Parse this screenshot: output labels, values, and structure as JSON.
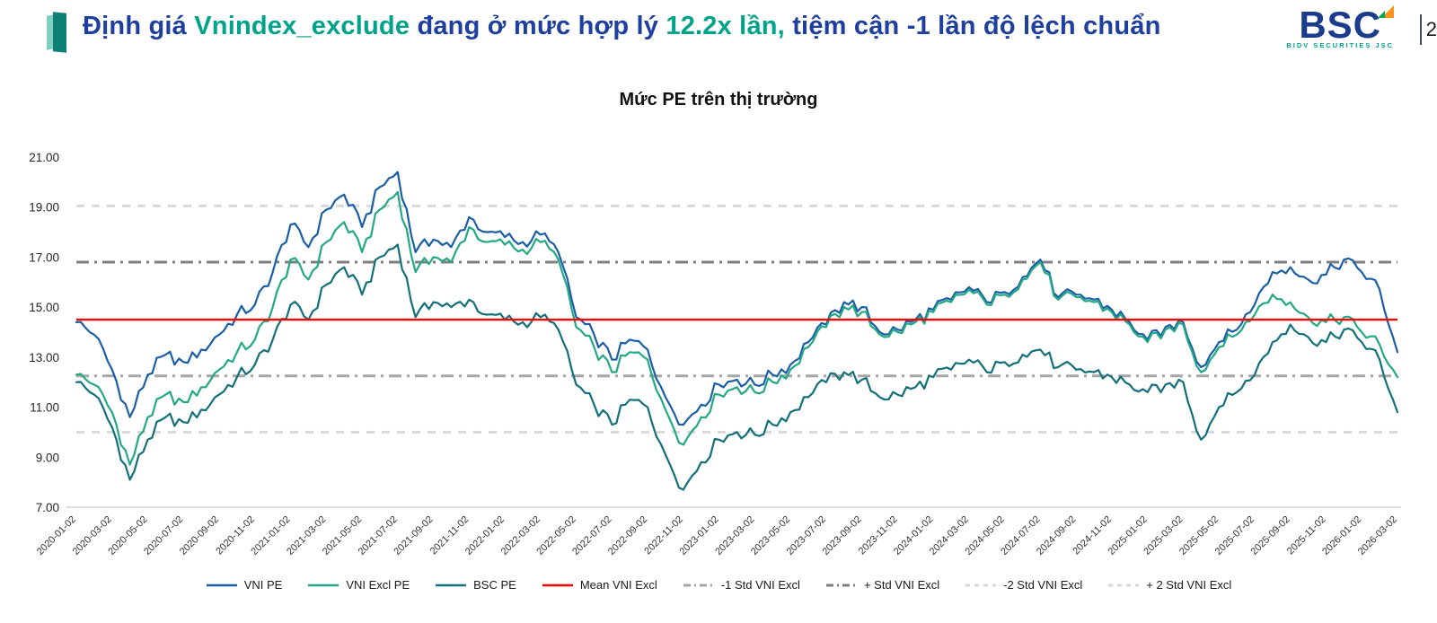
{
  "header": {
    "title_segments": [
      {
        "text": "Định giá ",
        "color": "#1e3f9e"
      },
      {
        "text": "Vnindex_exclude ",
        "color": "#00a38a"
      },
      {
        "text": "đang ở mức hợp lý ",
        "color": "#1e3f9e"
      },
      {
        "text": "12.2x lần, ",
        "color": "#00a38a"
      },
      {
        "text": "tiệm cận -1 lần độ lệch chuẩn",
        "color": "#1e3f9e"
      }
    ],
    "logo": {
      "text": "BSC",
      "subtext": "BIDV SECURITIES JSC"
    },
    "page_number": "2"
  },
  "chart_data": {
    "type": "line",
    "title": "Mức PE trên thị trường",
    "ylim": [
      7,
      21
    ],
    "yticks": [
      7,
      9,
      11,
      13,
      15,
      17,
      19,
      21
    ],
    "x_months": [
      "2020-01",
      "2020-02",
      "2020-03",
      "2020-04",
      "2020-05",
      "2020-06",
      "2020-07",
      "2020-08",
      "2020-09",
      "2020-10",
      "2020-11",
      "2020-12",
      "2021-01",
      "2021-02",
      "2021-03",
      "2021-04",
      "2021-05",
      "2021-06",
      "2021-07",
      "2021-08",
      "2021-09",
      "2021-10",
      "2021-11",
      "2021-12",
      "2022-01",
      "2022-02",
      "2022-03",
      "2022-04",
      "2022-05",
      "2022-06",
      "2022-07",
      "2022-08",
      "2022-09",
      "2022-10",
      "2022-11",
      "2022-12",
      "2023-01",
      "2023-02",
      "2023-03",
      "2023-04",
      "2023-05",
      "2023-06",
      "2023-07",
      "2023-08",
      "2023-09",
      "2023-10",
      "2023-11",
      "2023-12",
      "2024-01",
      "2024-02",
      "2024-03",
      "2024-04",
      "2024-05",
      "2024-06",
      "2024-07",
      "2024-08",
      "2024-09",
      "2024-10",
      "2024-11",
      "2024-12",
      "2025-01",
      "2025-02",
      "2025-03",
      "2025-04",
      "2025-05",
      "2025-06",
      "2025-07",
      "2025-08",
      "2025-09",
      "2025-10",
      "2025-11",
      "2025-12",
      "2026-01",
      "2026-02",
      "2026-03"
    ],
    "xtick_labels": [
      "2020-01-02",
      "2020-03-02",
      "2020-05-02",
      "2020-07-02",
      "2020-09-02",
      "2020-11-02",
      "2021-01-02",
      "2021-03-02",
      "2021-05-02",
      "2021-07-02",
      "2021-09-02",
      "2021-11-02",
      "2022-01-02",
      "2022-03-02",
      "2022-05-02",
      "2022-07-02",
      "2022-09-02",
      "2022-11-02",
      "2023-01-02",
      "2023-03-02",
      "2023-05-02",
      "2023-07-02",
      "2023-09-02",
      "2023-11-02",
      "2024-01-02",
      "2024-03-02",
      "2024-05-02",
      "2024-07-02",
      "2024-09-02",
      "2024-11-02",
      "2025-01-02",
      "2025-03-02",
      "2025-05-02",
      "2025-07-02",
      "2025-09-02",
      "2025-11-02",
      "2026-01-02",
      "2026-03-02"
    ],
    "series": [
      {
        "name": "VNI PE",
        "color": "#1b5ea6",
        "values": [
          14.4,
          13.9,
          12.5,
          10.6,
          12.3,
          13.1,
          12.8,
          13.3,
          13.9,
          14.7,
          15.1,
          16.4,
          18.3,
          17.4,
          18.9,
          19.5,
          18.2,
          19.8,
          20.4,
          17.2,
          17.7,
          17.4,
          18.6,
          18.0,
          17.8,
          17.6,
          17.9,
          17.2,
          14.6,
          13.9,
          12.9,
          13.7,
          13.3,
          11.4,
          10.3,
          11.1,
          11.9,
          12.1,
          11.9,
          12.3,
          12.7,
          13.6,
          14.3,
          15.2,
          15.0,
          14.0,
          14.1,
          14.5,
          14.9,
          15.3,
          15.8,
          15.2,
          15.6,
          16.2,
          16.9,
          15.4,
          15.5,
          15.3,
          14.9,
          14.4,
          13.7,
          14.2,
          14.4,
          12.6,
          13.6,
          14.1,
          15.1,
          16.4,
          16.6,
          16.1,
          16.3,
          16.9,
          16.4,
          15.7,
          13.2
        ]
      },
      {
        "name": "VNI Excl PE",
        "color": "#23a885",
        "values": [
          12.3,
          11.9,
          10.8,
          8.7,
          10.6,
          11.5,
          11.2,
          11.8,
          12.5,
          13.2,
          13.7,
          15.0,
          16.9,
          16.1,
          17.6,
          18.4,
          17.2,
          18.9,
          19.6,
          16.4,
          17.0,
          16.8,
          18.2,
          17.6,
          17.5,
          17.3,
          17.6,
          16.9,
          14.2,
          13.4,
          12.4,
          13.2,
          12.9,
          10.9,
          9.5,
          10.6,
          11.5,
          11.8,
          11.6,
          12.0,
          12.5,
          13.4,
          14.2,
          15.0,
          14.8,
          13.9,
          14.0,
          14.4,
          14.8,
          15.2,
          15.7,
          15.1,
          15.5,
          16.1,
          16.8,
          15.3,
          15.4,
          15.2,
          14.8,
          14.3,
          13.6,
          14.1,
          14.3,
          12.4,
          13.4,
          13.9,
          14.7,
          15.5,
          15.2,
          14.6,
          14.4,
          14.6,
          14.0,
          13.5,
          12.2
        ]
      },
      {
        "name": "BSC PE",
        "color": "#13707a",
        "values": [
          12.0,
          11.5,
          10.2,
          8.1,
          9.7,
          10.6,
          10.4,
          10.9,
          11.5,
          12.2,
          12.7,
          13.7,
          15.1,
          14.5,
          15.9,
          16.6,
          15.5,
          17.0,
          17.5,
          14.6,
          15.2,
          15.0,
          15.3,
          14.7,
          14.5,
          14.4,
          14.6,
          14.1,
          11.9,
          11.1,
          10.3,
          11.3,
          11.0,
          9.1,
          7.7,
          8.8,
          9.7,
          10.0,
          9.9,
          10.3,
          10.8,
          11.4,
          12.0,
          12.4,
          12.1,
          11.4,
          11.5,
          11.8,
          12.2,
          12.5,
          12.9,
          12.4,
          12.8,
          13.1,
          13.3,
          12.6,
          12.5,
          12.4,
          12.2,
          11.9,
          11.6,
          11.9,
          12.0,
          9.7,
          11.0,
          11.6,
          12.3,
          13.6,
          14.3,
          13.8,
          13.6,
          14.1,
          13.6,
          12.9,
          10.8
        ]
      }
    ],
    "hlines": [
      {
        "name": "Mean VNI Excl",
        "value": 14.5,
        "color": "#ff0000",
        "style": "solid"
      },
      {
        "name": "-1 Std VNI Excl",
        "value": 12.25,
        "color": "#a6a6a6",
        "style": "dashdot"
      },
      {
        "name": "+ Std VNI Excl",
        "value": 16.8,
        "color": "#7f7f7f",
        "style": "dashdot"
      },
      {
        "name": "-2 Std VNI Excl",
        "value": 10.0,
        "color": "#d9d9d9",
        "style": "dash"
      },
      {
        "name": "+ 2 Std VNI Excl",
        "value": 19.05,
        "color": "#d9d9d9",
        "style": "dash"
      }
    ],
    "legend": [
      {
        "label": "VNI PE",
        "color": "#1b5ea6",
        "style": "solid"
      },
      {
        "label": "VNI Excl PE",
        "color": "#23a885",
        "style": "solid"
      },
      {
        "label": "BSC PE",
        "color": "#13707a",
        "style": "solid"
      },
      {
        "label": "Mean VNI Excl",
        "color": "#ff0000",
        "style": "solid"
      },
      {
        "label": "-1 Std VNI Excl",
        "color": "#a6a6a6",
        "style": "dashdot"
      },
      {
        "label": "+ Std VNI Excl",
        "color": "#7f7f7f",
        "style": "dashdot"
      },
      {
        "label": "-2 Std VNI Excl",
        "color": "#d9d9d9",
        "style": "dash"
      },
      {
        "label": "+ 2 Std VNI Excl",
        "color": "#d9d9d9",
        "style": "dash"
      }
    ],
    "legend_position": "bottom",
    "grid": "horizontal-std-bands-only"
  }
}
